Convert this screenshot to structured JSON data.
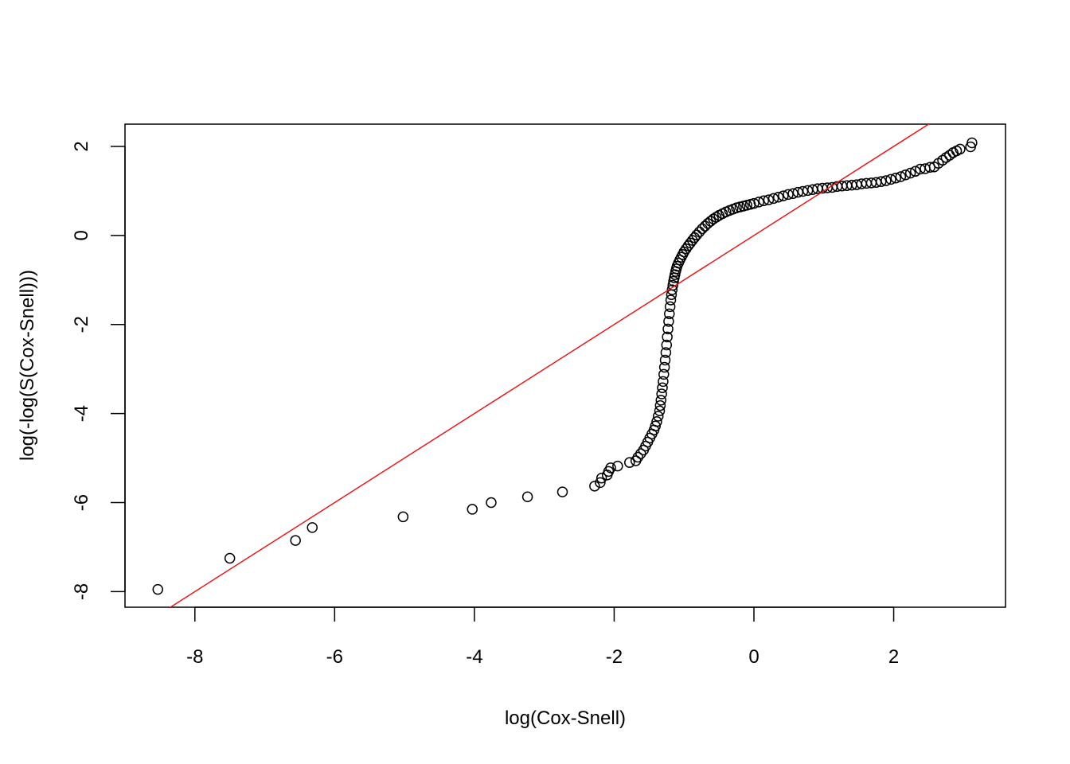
{
  "chart_data": {
    "type": "scatter",
    "title": "",
    "xlabel": "log(Cox-Snell)",
    "ylabel": "log(-log(S(Cox-Snell)))",
    "xlim": [
      -9.0,
      3.6
    ],
    "ylim": [
      -8.35,
      2.5
    ],
    "x_ticks": [
      -8,
      -6,
      -4,
      -2,
      0,
      2
    ],
    "x_tick_labels": [
      "-8",
      "-6",
      "-4",
      "-2",
      "0",
      "2"
    ],
    "y_ticks": [
      -8,
      -6,
      -4,
      -2,
      0,
      2
    ],
    "y_tick_labels": [
      "-8",
      "-6",
      "-4",
      "-2",
      "0",
      "2"
    ],
    "grid": false,
    "legend": "none",
    "point_color": "#000000",
    "reference_line": {
      "intercept": 0,
      "slope": 1,
      "color": "#e41a1c"
    },
    "points_x": [
      -8.53,
      -7.5,
      -6.56,
      -6.32,
      -5.02,
      -4.03,
      -3.76,
      -3.24,
      -2.74,
      -2.28,
      -2.2,
      -2.18,
      -2.1,
      -2.08,
      -2.05,
      -1.95,
      -1.78,
      -1.69,
      -1.66,
      -1.62,
      -1.58,
      -1.55,
      -1.52,
      -1.49,
      -1.46,
      -1.43,
      -1.41,
      -1.39,
      -1.37,
      -1.35,
      -1.34,
      -1.33,
      -1.32,
      -1.31,
      -1.3,
      -1.29,
      -1.28,
      -1.27,
      -1.26,
      -1.25,
      -1.24,
      -1.23,
      -1.22,
      -1.21,
      -1.2,
      -1.19,
      -1.18,
      -1.17,
      -1.16,
      -1.15,
      -1.14,
      -1.13,
      -1.12,
      -1.11,
      -1.1,
      -1.08,
      -1.06,
      -1.04,
      -1.02,
      -1.0,
      -0.97,
      -0.94,
      -0.91,
      -0.88,
      -0.85,
      -0.82,
      -0.78,
      -0.74,
      -0.7,
      -0.66,
      -0.62,
      -0.58,
      -0.54,
      -0.5,
      -0.45,
      -0.4,
      -0.35,
      -0.3,
      -0.25,
      -0.2,
      -0.15,
      -0.1,
      -0.05,
      0.0,
      0.07,
      0.14,
      0.21,
      0.28,
      0.35,
      0.42,
      0.49,
      0.56,
      0.63,
      0.7,
      0.77,
      0.84,
      0.91,
      0.98,
      1.05,
      1.12,
      1.19,
      1.26,
      1.33,
      1.4,
      1.47,
      1.54,
      1.61,
      1.68,
      1.75,
      1.82,
      1.89,
      1.96,
      2.03,
      2.1,
      2.17,
      2.24,
      2.31,
      2.38,
      2.45,
      2.52,
      2.58,
      2.64,
      2.7,
      2.75,
      2.8,
      2.85,
      2.9,
      2.95,
      3.1,
      3.12
    ],
    "points_y": [
      -7.95,
      -7.25,
      -6.85,
      -6.56,
      -6.32,
      -6.15,
      -6.0,
      -5.87,
      -5.76,
      -5.63,
      -5.55,
      -5.45,
      -5.38,
      -5.3,
      -5.22,
      -5.18,
      -5.1,
      -5.06,
      -4.98,
      -4.9,
      -4.82,
      -4.73,
      -4.64,
      -4.55,
      -4.46,
      -4.37,
      -4.28,
      -4.18,
      -4.06,
      -3.94,
      -3.82,
      -3.7,
      -3.56,
      -3.42,
      -3.28,
      -3.12,
      -2.96,
      -2.8,
      -2.63,
      -2.46,
      -2.28,
      -2.1,
      -1.93,
      -1.76,
      -1.6,
      -1.45,
      -1.33,
      -1.22,
      -1.12,
      -1.03,
      -0.95,
      -0.88,
      -0.81,
      -0.75,
      -0.69,
      -0.62,
      -0.55,
      -0.49,
      -0.43,
      -0.37,
      -0.3,
      -0.23,
      -0.17,
      -0.11,
      -0.05,
      0.01,
      0.08,
      0.15,
      0.21,
      0.27,
      0.32,
      0.37,
      0.41,
      0.45,
      0.49,
      0.53,
      0.56,
      0.59,
      0.62,
      0.64,
      0.66,
      0.68,
      0.7,
      0.72,
      0.75,
      0.78,
      0.8,
      0.83,
      0.86,
      0.89,
      0.92,
      0.94,
      0.97,
      0.99,
      1.01,
      1.03,
      1.05,
      1.06,
      1.07,
      1.08,
      1.1,
      1.11,
      1.12,
      1.13,
      1.14,
      1.16,
      1.17,
      1.18,
      1.19,
      1.21,
      1.23,
      1.26,
      1.29,
      1.32,
      1.36,
      1.4,
      1.44,
      1.49,
      1.5,
      1.53,
      1.54,
      1.62,
      1.69,
      1.75,
      1.8,
      1.86,
      1.9,
      1.94,
      1.99,
      2.08
    ]
  }
}
